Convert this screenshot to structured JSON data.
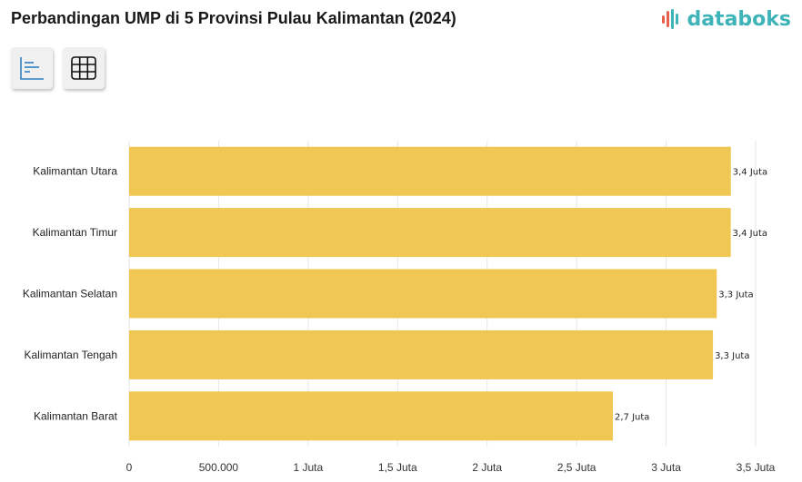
{
  "header": {
    "title": "Perbandingan UMP di 5 Provinsi Pulau Kalimantan (2024)",
    "brand": "databoks"
  },
  "toolbar": {
    "chart_view_icon": "bar-chart-icon",
    "table_view_icon": "table-grid-icon"
  },
  "colors": {
    "bar": "#f0c752",
    "brand": "#3fb4b8",
    "brand_icon": "#e8604c",
    "grid": "#e6e6e6"
  },
  "chart_data": {
    "type": "bar",
    "orientation": "horizontal",
    "title": "Perbandingan UMP di 5 Provinsi Pulau Kalimantan (2024)",
    "categories": [
      "Kalimantan Utara",
      "Kalimantan Timur",
      "Kalimantan Selatan",
      "Kalimantan Tengah",
      "Kalimantan Barat"
    ],
    "values": [
      3361700,
      3360858,
      3282812,
      3261616,
      2702616
    ],
    "data_labels": [
      "3,4 Juta",
      "3,4 Juta",
      "3,3 Juta",
      "3,3 Juta",
      "2,7 Juta"
    ],
    "xlim": [
      0,
      3500000
    ],
    "x_ticks": [
      0,
      500000,
      1000000,
      1500000,
      2000000,
      2500000,
      3000000,
      3500000
    ],
    "x_tick_labels": [
      "0",
      "500.000",
      "1 Juta",
      "1,5 Juta",
      "2 Juta",
      "2,5 Juta",
      "3 Juta",
      "3,5 Juta"
    ],
    "xlabel": "",
    "ylabel": "",
    "grid": true
  }
}
